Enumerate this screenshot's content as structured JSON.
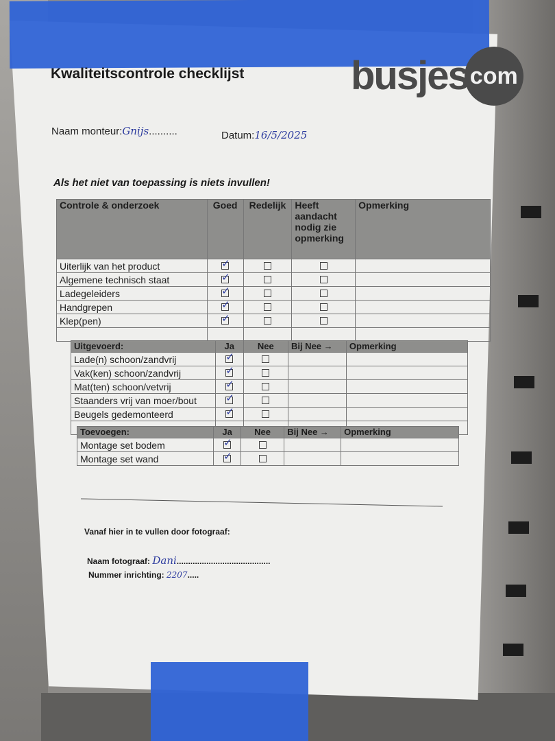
{
  "header": {
    "title": "Kwaliteitscontrole checklijst",
    "logo_word": "busjes",
    "logo_com": "com"
  },
  "fields": {
    "monteur_label": "Naam monteur:",
    "monteur_value": "Gnijs",
    "datum_label": "Datum:",
    "datum_value": "16/5/2025"
  },
  "instruction": "Als het niet van toepassing is niets invullen!",
  "table1": {
    "headers": [
      "Controle & onderzoek",
      "Goed",
      "Redelijk",
      "Heeft aandacht nodig zie opmerking",
      "Opmerking"
    ],
    "rows": [
      {
        "label": "Uiterlijk van het product",
        "checks": [
          true,
          false,
          false
        ]
      },
      {
        "label": "Algemene technisch staat",
        "checks": [
          true,
          false,
          false
        ]
      },
      {
        "label": "Ladegeleiders",
        "checks": [
          true,
          false,
          false
        ]
      },
      {
        "label": "Handgrepen",
        "checks": [
          true,
          false,
          false
        ]
      },
      {
        "label": "Klep(pen)",
        "checks": [
          true,
          false,
          false
        ]
      }
    ]
  },
  "table2": {
    "headers": [
      "Uitgevoerd:",
      "Ja",
      "Nee",
      "Bij Nee →",
      "Opmerking"
    ],
    "rows": [
      {
        "label": "Lade(n) schoon/zandvrij",
        "checks": [
          true,
          false
        ]
      },
      {
        "label": "Vak(ken) schoon/zandvrij",
        "checks": [
          true,
          false
        ]
      },
      {
        "label": "Mat(ten) schoon/vetvrij",
        "checks": [
          true,
          false
        ]
      },
      {
        "label": "Staanders vrij van moer/bout",
        "checks": [
          true,
          false
        ]
      },
      {
        "label": "Beugels gedemonteerd",
        "checks": [
          true,
          false
        ]
      }
    ]
  },
  "table3": {
    "headers": [
      "Toevoegen:",
      "Ja",
      "Nee",
      "Bij Nee →",
      "Opmerking"
    ],
    "rows": [
      {
        "label": "Montage set bodem",
        "checks": [
          true,
          false
        ]
      },
      {
        "label": "Montage set wand",
        "checks": [
          true,
          false
        ]
      }
    ]
  },
  "photographer": {
    "heading": "Vanaf hier in te vullen door fotograaf:",
    "name_label": "Naam fotograaf:",
    "name_value": "Dani",
    "number_label": "Nummer inrichting:",
    "number_value": "2207"
  },
  "colors": {
    "tape": "#2f63d6",
    "header_gray": "#8e8e8c",
    "ink": "#2b3a9e"
  }
}
